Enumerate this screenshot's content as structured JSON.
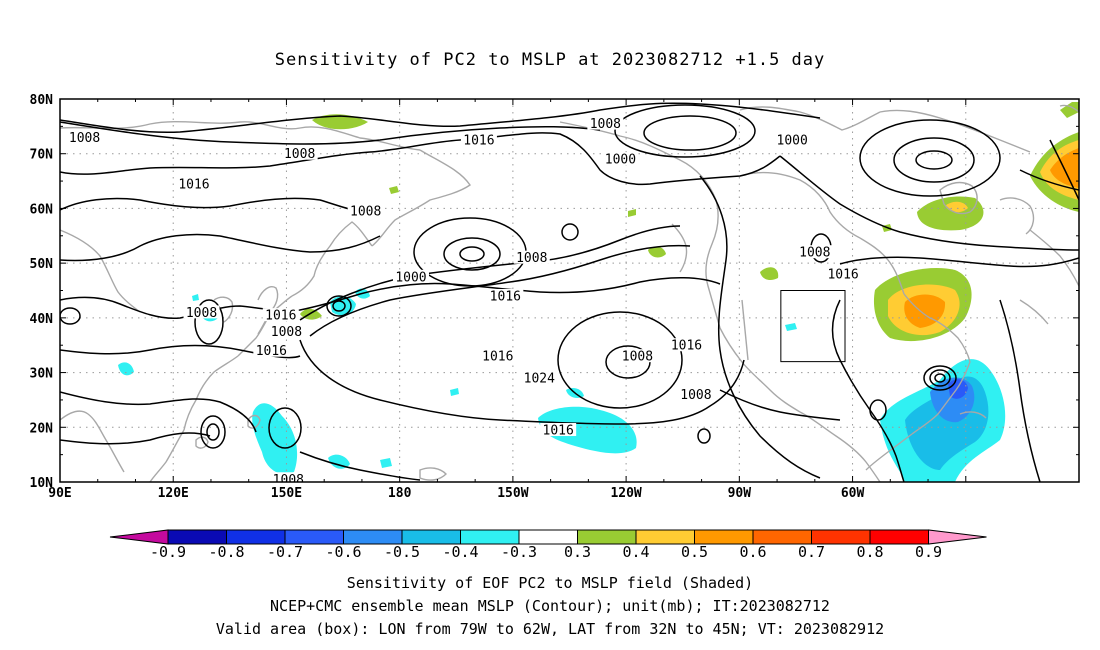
{
  "title": "Sensitivity of PC2 to MSLP at 2023082712 +1.5 day",
  "map": {
    "lon_labels": [
      "90E",
      "120E",
      "150E",
      "180",
      "150W",
      "120W",
      "90W",
      "60W"
    ],
    "lat_labels": [
      "80N",
      "70N",
      "60N",
      "50N",
      "40N",
      "30N",
      "20N",
      "10N"
    ],
    "contour_labels": [
      {
        "text": "1008",
        "lon": -125.5,
        "lat": 75.5
      },
      {
        "text": "1000",
        "lon": -121.5,
        "lat": 69.0
      },
      {
        "text": "1008",
        "lon": 96.5,
        "lat": 73.0
      },
      {
        "text": "1008",
        "lon": 153.5,
        "lat": 70.0
      },
      {
        "text": "1016",
        "lon": -159.0,
        "lat": 72.5
      },
      {
        "text": "1000",
        "lon": -76.0,
        "lat": 72.5
      },
      {
        "text": "1016",
        "lon": 125.5,
        "lat": 64.5
      },
      {
        "text": "1008",
        "lon": 171.0,
        "lat": 59.5
      },
      {
        "text": "1000",
        "lon": -177.0,
        "lat": 47.5
      },
      {
        "text": "1008",
        "lon": -145.0,
        "lat": 51.0
      },
      {
        "text": "1016",
        "lon": -152.0,
        "lat": 44.0
      },
      {
        "text": "1008",
        "lon": -70.0,
        "lat": 52.0
      },
      {
        "text": "1016",
        "lon": -62.5,
        "lat": 48.0
      },
      {
        "text": "1008",
        "lon": 127.5,
        "lat": 41.0
      },
      {
        "text": "1016",
        "lon": 148.5,
        "lat": 40.5
      },
      {
        "text": "1008",
        "lon": 150.0,
        "lat": 37.5
      },
      {
        "text": "1016",
        "lon": 146.0,
        "lat": 34.0
      },
      {
        "text": "1016",
        "lon": -154.0,
        "lat": 33.0
      },
      {
        "text": "1024",
        "lon": -143.0,
        "lat": 29.0
      },
      {
        "text": "1008",
        "lon": -117.0,
        "lat": 33.0
      },
      {
        "text": "1016",
        "lon": -104.0,
        "lat": 35.0
      },
      {
        "text": "1008",
        "lon": -101.5,
        "lat": 26.0
      },
      {
        "text": "1016",
        "lon": -138.0,
        "lat": 19.5
      },
      {
        "text": "1008",
        "lon": 150.5,
        "lat": 10.5
      }
    ],
    "valid_area_box": {
      "lon_min": -79,
      "lon_max": -62,
      "lat_min": 32,
      "lat_max": 45
    }
  },
  "colorbar": {
    "labels": [
      "-0.9",
      "-0.8",
      "-0.7",
      "-0.6",
      "-0.5",
      "-0.4",
      "-0.3",
      "0.3",
      "0.4",
      "0.5",
      "0.6",
      "0.7",
      "0.8",
      "0.9"
    ],
    "colors": [
      "#0a0ab4",
      "#1030e6",
      "#2a5af8",
      "#2d8cf5",
      "#19bde8",
      "#30f0f2",
      "#ffffff",
      "#99cc33",
      "#ffcc33",
      "#ff9900",
      "#ff6600",
      "#ff3300",
      "#ff0000"
    ],
    "low_end_color": "#c40a9e",
    "high_end_color": "#ff99cc"
  },
  "caption": {
    "line1": "Sensitivity of EOF PC2 to MSLP field (Shaded)",
    "line2": "NCEP+CMC ensemble mean MSLP (Contour); unit(mb); IT:2023082712",
    "line3": "Valid area (box): LON from 79W to 62W, LAT from 32N to 45N; VT: 2023082912"
  }
}
